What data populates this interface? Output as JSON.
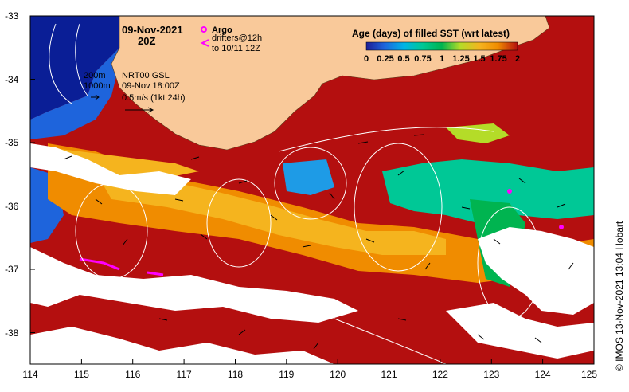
{
  "map": {
    "date_title": "09-Nov-2021",
    "hour_title": "20Z",
    "legend_argo": "Argo",
    "legend_drifters": "drifters@12h",
    "legend_drifters_to": "to 10/11 12Z",
    "bathy_200": "200m",
    "bathy_1000": "1000m",
    "model_label": "NRT00 GSL",
    "model_time": "09-Nov 18:00Z",
    "vector_scale": "0.5m/s (1kt 24h)",
    "colorbar_title": "Age (days) of filled SST (wrt latest)",
    "colorbar_ticks": [
      "0",
      "0.25",
      "0.5",
      "0.75",
      "1",
      "1.25",
      "1.5",
      "1.75",
      "2"
    ],
    "credit": "© IMOS 13-Nov-2021 13:04 Hobart",
    "x_ticks": [
      "114",
      "115",
      "116",
      "117",
      "118",
      "119",
      "120",
      "121",
      "122",
      "123",
      "124",
      "125"
    ],
    "y_ticks": [
      "-33",
      "-34",
      "-35",
      "-36",
      "-37",
      "-38"
    ],
    "colors": {
      "land": "#f9c99a",
      "age_2": "#b40f0f",
      "age_175": "#e63c14",
      "age_15": "#f08c00",
      "age_125": "#f5b41e",
      "age_1": "#b4dc28",
      "age_075": "#00b450",
      "age_05": "#00c896",
      "age_025": "#1e9be6",
      "age_0": "#1e46c8",
      "deep_water": "#0a1e96",
      "argo_marker": "#ff00ff"
    }
  }
}
